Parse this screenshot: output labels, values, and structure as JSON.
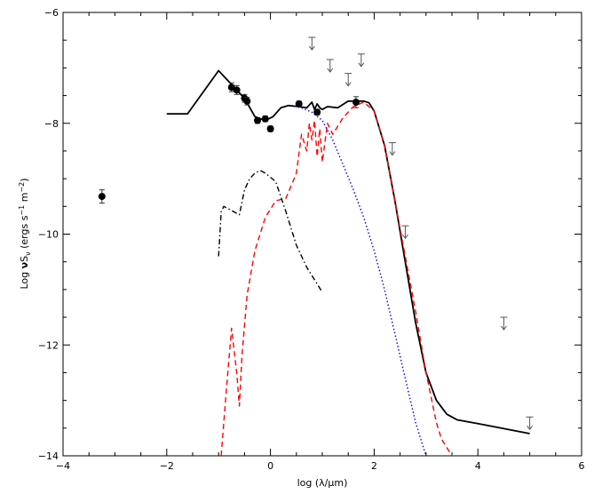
{
  "chart_data": {
    "type": "line",
    "xlabel": "log (λ/μm)",
    "ylabel_parts": {
      "prefix": "Log ",
      "nu": "ν",
      "s": "S",
      "sub": "ν",
      "units_open": " (ergs s",
      "sup1": "−1",
      "units_mid": " m",
      "sup2": "−2",
      "units_close": ")"
    },
    "xlim": [
      -4,
      6
    ],
    "ylim": [
      -14,
      -6
    ],
    "xticks": [
      -4,
      -2,
      0,
      2,
      4,
      6
    ],
    "yticks": [
      -14,
      -12,
      -10,
      -8,
      -6
    ],
    "grid": false,
    "colors": {
      "total": "#000000",
      "red": "#ff0000",
      "blue": "#0000ff",
      "dashdot": "#000000",
      "upper_limit": "#555555",
      "points": "#000000"
    },
    "series": [
      {
        "style": "solid",
        "color": "#000000",
        "x": [
          -2.0,
          -1.6,
          -1.0,
          -0.7,
          -0.5,
          -0.3,
          -0.1,
          0.05,
          0.2,
          0.35,
          0.55,
          0.7,
          0.8,
          0.85,
          0.9,
          0.95,
          1.0,
          1.1,
          1.3,
          1.5,
          1.65,
          1.8,
          1.9,
          2.0,
          2.2,
          2.4,
          2.6,
          2.8,
          3.0,
          3.2,
          3.4,
          3.5,
          3.6,
          4.0,
          5.0
        ],
        "y": [
          -7.83,
          -7.83,
          -7.05,
          -7.35,
          -7.55,
          -7.88,
          -7.95,
          -7.88,
          -7.72,
          -7.68,
          -7.7,
          -7.72,
          -7.62,
          -7.75,
          -7.65,
          -7.72,
          -7.75,
          -7.7,
          -7.72,
          -7.6,
          -7.6,
          -7.6,
          -7.63,
          -7.78,
          -8.4,
          -9.4,
          -10.5,
          -11.6,
          -12.5,
          -13.0,
          -13.25,
          -13.3,
          -13.35,
          -13.42,
          -13.6
        ]
      },
      {
        "style": "dashed",
        "color": "#ff0000",
        "x": [
          -0.95,
          -0.85,
          -0.75,
          -0.65,
          -0.6,
          -0.55,
          -0.45,
          -0.3,
          -0.1,
          0.1,
          0.3,
          0.5,
          0.6,
          0.7,
          0.75,
          0.8,
          0.85,
          0.9,
          0.95,
          1.0,
          1.1,
          1.2,
          1.4,
          1.6,
          1.8,
          2.0,
          2.2,
          2.5,
          2.8,
          3.0,
          3.2,
          3.3,
          3.5
        ],
        "y": [
          -14.0,
          -12.8,
          -11.7,
          -12.5,
          -13.1,
          -12.2,
          -11.1,
          -10.3,
          -9.7,
          -9.4,
          -9.35,
          -8.9,
          -8.2,
          -8.5,
          -8.0,
          -8.3,
          -7.95,
          -8.6,
          -8.1,
          -8.7,
          -8.0,
          -8.2,
          -7.9,
          -7.7,
          -7.62,
          -7.78,
          -8.4,
          -9.9,
          -11.4,
          -12.5,
          -13.4,
          -13.7,
          -14.0
        ]
      },
      {
        "style": "dotted",
        "color": "#0000ff",
        "x": [
          0.4,
          0.6,
          0.8,
          1.0,
          1.2,
          1.4,
          1.6,
          1.8,
          2.0,
          2.2,
          2.4,
          2.6,
          2.8,
          3.0
        ],
        "y": [
          -7.68,
          -7.72,
          -7.8,
          -7.95,
          -8.3,
          -8.75,
          -9.2,
          -9.7,
          -10.3,
          -11.0,
          -11.8,
          -12.6,
          -13.4,
          -14.0
        ]
      },
      {
        "style": "dash-dot",
        "color": "#000000",
        "x": [
          -1.0,
          -0.95,
          -0.9,
          -0.8,
          -0.6,
          -0.5,
          -0.4,
          -0.3,
          -0.2,
          -0.1,
          0.1,
          0.3,
          0.5,
          0.7,
          0.9,
          1.0
        ],
        "y": [
          -10.4,
          -9.6,
          -9.5,
          -9.55,
          -9.65,
          -9.2,
          -9.0,
          -8.9,
          -8.85,
          -8.9,
          -9.05,
          -9.6,
          -10.2,
          -10.6,
          -10.9,
          -11.05
        ]
      }
    ],
    "points": {
      "x": [
        -3.25,
        -0.75,
        -0.65,
        -0.5,
        -0.45,
        -0.25,
        -0.1,
        0.0,
        0.55,
        0.9,
        1.65
      ],
      "y": [
        -9.32,
        -7.35,
        -7.4,
        -7.55,
        -7.6,
        -7.95,
        -7.92,
        -8.1,
        -7.65,
        -7.8,
        -7.62
      ],
      "yerr": [
        0.12,
        0.08,
        0.08,
        0.07,
        0.07,
        0.05,
        0.05,
        0.05,
        0.05,
        0.05,
        0.1
      ]
    },
    "upper_limits": {
      "x": [
        0.8,
        1.15,
        1.5,
        1.75,
        2.35,
        2.6,
        4.5,
        5.0
      ],
      "y": [
        -6.45,
        -6.85,
        -7.1,
        -6.75,
        -8.35,
        -9.85,
        -11.5,
        -13.3
      ]
    }
  }
}
